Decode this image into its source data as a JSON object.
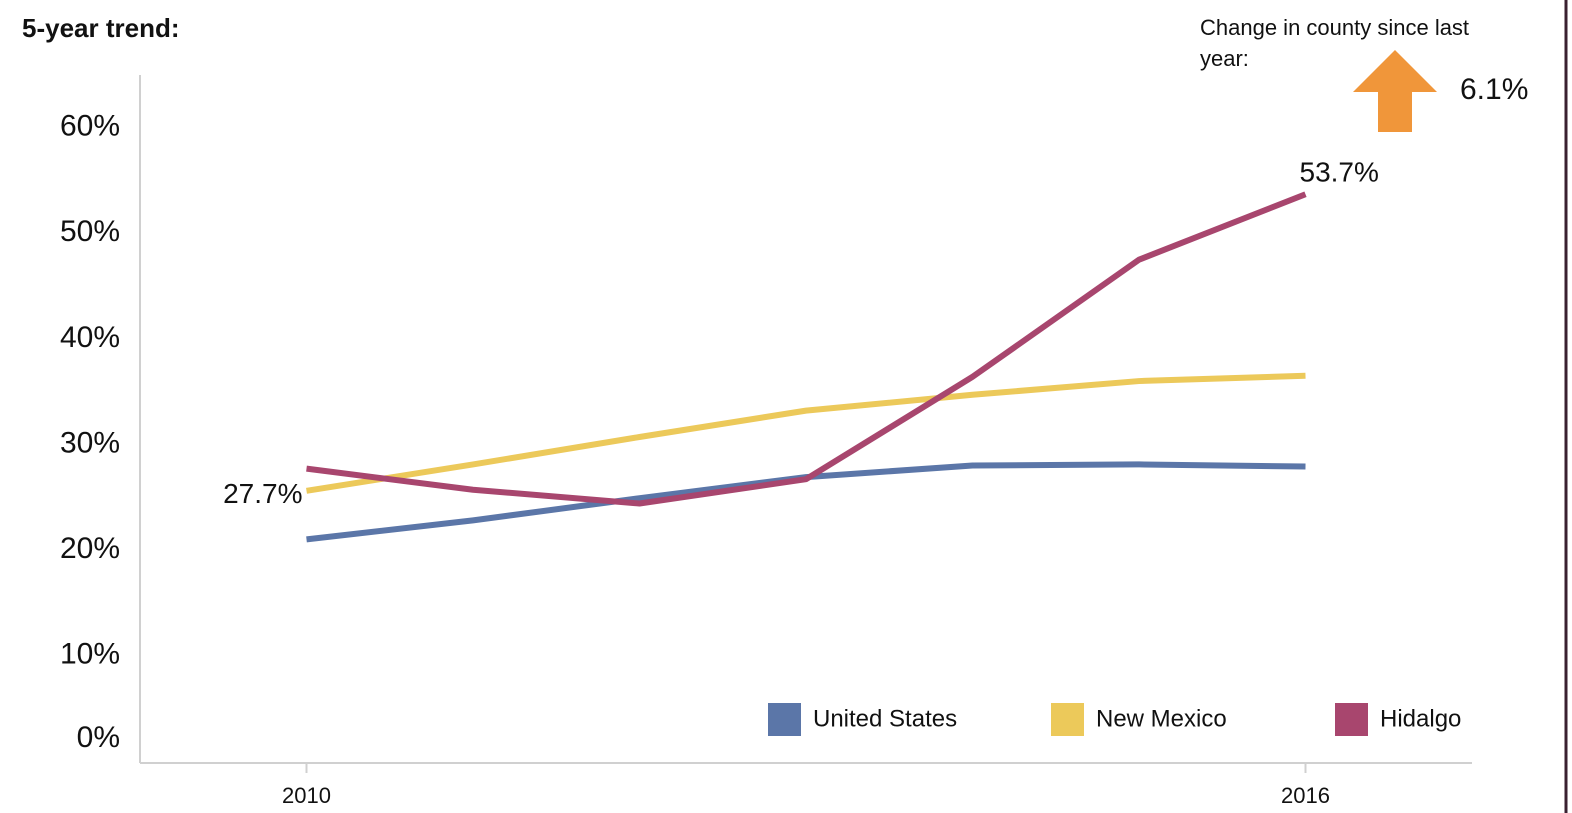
{
  "chart_data": {
    "type": "line",
    "title": "5-year trend:",
    "x": [
      2010,
      2011,
      2012,
      2013,
      2014,
      2015,
      2016
    ],
    "xlim": [
      2009,
      2017
    ],
    "xticks": [
      2010,
      2016
    ],
    "ylim": [
      0,
      65
    ],
    "yticks": [
      {
        "value": 0,
        "label": "0%"
      },
      {
        "value": 10,
        "label": "10%"
      },
      {
        "value": 20,
        "label": "20%"
      },
      {
        "value": 30,
        "label": "30%"
      },
      {
        "value": 40,
        "label": "40%"
      },
      {
        "value": 50,
        "label": "50%"
      },
      {
        "value": 60,
        "label": "60%"
      }
    ],
    "grid": false,
    "legend": "bottom-right",
    "series": [
      {
        "name": "United States",
        "color": "#5b76a8",
        "values": [
          21.0,
          22.8,
          24.9,
          26.9,
          28.0,
          28.1,
          27.9
        ]
      },
      {
        "name": "New Mexico",
        "color": "#ecc95a",
        "values": [
          25.6,
          28.1,
          30.7,
          33.2,
          34.7,
          36.0,
          36.5
        ]
      },
      {
        "name": "Hidalgo",
        "color": "#a8466e",
        "values": [
          27.7,
          25.7,
          24.4,
          26.7,
          36.4,
          47.5,
          53.7
        ],
        "value_labels": [
          "27.7%",
          null,
          null,
          null,
          null,
          null,
          "53.7%"
        ]
      }
    ],
    "annotation": {
      "text": "Change in county since last year:",
      "value_label": "6.1%"
    }
  }
}
